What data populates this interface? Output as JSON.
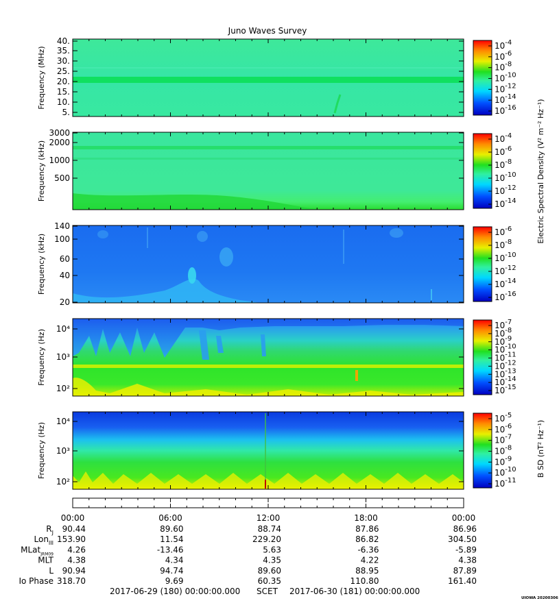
{
  "title": "Juno Waves Survey",
  "footer": {
    "start": "2017-06-29 (180) 00:00:00.000",
    "frame": "SCET",
    "end": "2017-06-30 (181) 00:00:00.000",
    "stamp": "UIOWA 20200306"
  },
  "chart_data": [
    {
      "type": "heatmap",
      "ylabel": "Frequency (MHz)",
      "yticks": [
        "40.",
        "35.",
        "30.",
        "25.",
        "20.",
        "15.",
        "10.",
        "5."
      ],
      "cbar_ticks": [
        -4,
        -6,
        -8,
        -10,
        -12,
        -14,
        -16
      ],
      "cbar_label": "",
      "bands": "strong horizontal band near 21 MHz",
      "colors": [
        "#0000c0",
        "#0060ff",
        "#00e0ff",
        "#30f080",
        "#30e030",
        "#f0f000",
        "#ff8000",
        "#ff0000"
      ]
    },
    {
      "type": "heatmap",
      "ylabel": "Frequency (kHz)",
      "yticks": [
        "3000",
        "2000",
        "1000",
        "500"
      ],
      "cbar_ticks": [
        -4,
        -6,
        -8,
        -10,
        -12,
        -14
      ],
      "cbar_label": ""
    },
    {
      "type": "heatmap",
      "ylabel": "Frequency (kHz)",
      "yticks": [
        "140",
        "100",
        "60",
        "40",
        "20"
      ],
      "cbar_ticks": [
        -6,
        -8,
        -10,
        -12,
        -14,
        -16
      ],
      "cbar_label": "Electric Spectral Density (V² m⁻² Hz⁻¹)"
    },
    {
      "type": "heatmap",
      "ylabel": "Frequency (Hz)",
      "yticks": [
        "10⁴",
        "10³",
        "10²"
      ],
      "cbar_ticks": [
        -7,
        -8,
        -9,
        -10,
        -11,
        -12,
        -13,
        -14,
        -15
      ],
      "cbar_label": ""
    },
    {
      "type": "heatmap",
      "ylabel": "Frequency (Hz)",
      "yticks": [
        "10⁴",
        "10³",
        "10²"
      ],
      "cbar_ticks": [
        -5,
        -6,
        -7,
        -8,
        -9,
        -10,
        -11
      ],
      "cbar_label": "B SD (nT² Hz⁻¹)"
    }
  ],
  "ephemeris": {
    "times": [
      "00:00",
      "06:00",
      "12:00",
      "18:00",
      "00:00"
    ],
    "rows": [
      {
        "label": "R",
        "sub": "J",
        "values": [
          "90.44",
          "89.60",
          "88.74",
          "87.86",
          "86.96"
        ]
      },
      {
        "label": "Lon",
        "sub": "III",
        "values": [
          "153.90",
          "11.54",
          "229.20",
          "86.82",
          "304.50"
        ]
      },
      {
        "label": "MLat",
        "sub": "JRM09",
        "values": [
          "4.26",
          "-13.46",
          "5.63",
          "-6.36",
          "-5.89"
        ]
      },
      {
        "label": "MLT",
        "sub": "",
        "values": [
          "4.38",
          "4.34",
          "4.35",
          "4.22",
          "4.38"
        ]
      },
      {
        "label": "L",
        "sub": "",
        "values": [
          "90.94",
          "94.74",
          "89.60",
          "88.95",
          "87.89"
        ]
      },
      {
        "label": "Io Phase",
        "sub": "",
        "values": [
          "318.70",
          "9.69",
          "60.35",
          "110.80",
          "161.40"
        ]
      }
    ]
  }
}
